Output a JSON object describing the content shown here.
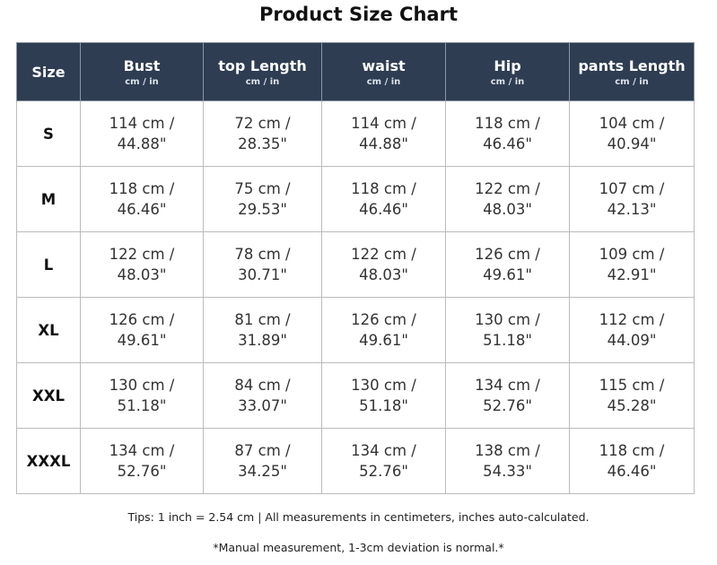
{
  "title": "Product Size Chart",
  "table": {
    "columns": [
      {
        "name": "Size"
      },
      {
        "name": "Bust",
        "unit": "cm / in"
      },
      {
        "name": "top Length",
        "unit": "cm / in"
      },
      {
        "name": "waist",
        "unit": "cm / in"
      },
      {
        "name": "Hip",
        "unit": "cm / in"
      },
      {
        "name": "pants Length",
        "unit": "cm / in"
      }
    ],
    "rows": [
      {
        "size": "S",
        "cells": [
          [
            "114 cm /",
            "44.88\""
          ],
          [
            "72 cm /",
            "28.35\""
          ],
          [
            "114 cm /",
            "44.88\""
          ],
          [
            "118 cm /",
            "46.46\""
          ],
          [
            "104 cm /",
            "40.94\""
          ]
        ]
      },
      {
        "size": "M",
        "cells": [
          [
            "118 cm /",
            "46.46\""
          ],
          [
            "75 cm /",
            "29.53\""
          ],
          [
            "118 cm /",
            "46.46\""
          ],
          [
            "122 cm /",
            "48.03\""
          ],
          [
            "107 cm /",
            "42.13\""
          ]
        ]
      },
      {
        "size": "L",
        "cells": [
          [
            "122 cm /",
            "48.03\""
          ],
          [
            "78 cm /",
            "30.71\""
          ],
          [
            "122 cm /",
            "48.03\""
          ],
          [
            "126 cm /",
            "49.61\""
          ],
          [
            "109 cm /",
            "42.91\""
          ]
        ]
      },
      {
        "size": "XL",
        "cells": [
          [
            "126 cm /",
            "49.61\""
          ],
          [
            "81 cm /",
            "31.89\""
          ],
          [
            "126 cm /",
            "49.61\""
          ],
          [
            "130 cm /",
            "51.18\""
          ],
          [
            "112 cm /",
            "44.09\""
          ]
        ]
      },
      {
        "size": "XXL",
        "cells": [
          [
            "130 cm /",
            "51.18\""
          ],
          [
            "84 cm /",
            "33.07\""
          ],
          [
            "130 cm /",
            "51.18\""
          ],
          [
            "134 cm /",
            "52.76\""
          ],
          [
            "115 cm /",
            "45.28\""
          ]
        ]
      },
      {
        "size": "XXXL",
        "cells": [
          [
            "134 cm /",
            "52.76\""
          ],
          [
            "87 cm /",
            "34.25\""
          ],
          [
            "134 cm /",
            "52.76\""
          ],
          [
            "138 cm /",
            "54.33\""
          ],
          [
            "118 cm /",
            "46.46\""
          ]
        ]
      }
    ]
  },
  "tips": "Tips: 1 inch = 2.54 cm | All measurements in centimeters, inches auto-calculated.",
  "note": "*Manual measurement, 1-3cm deviation is normal.*"
}
